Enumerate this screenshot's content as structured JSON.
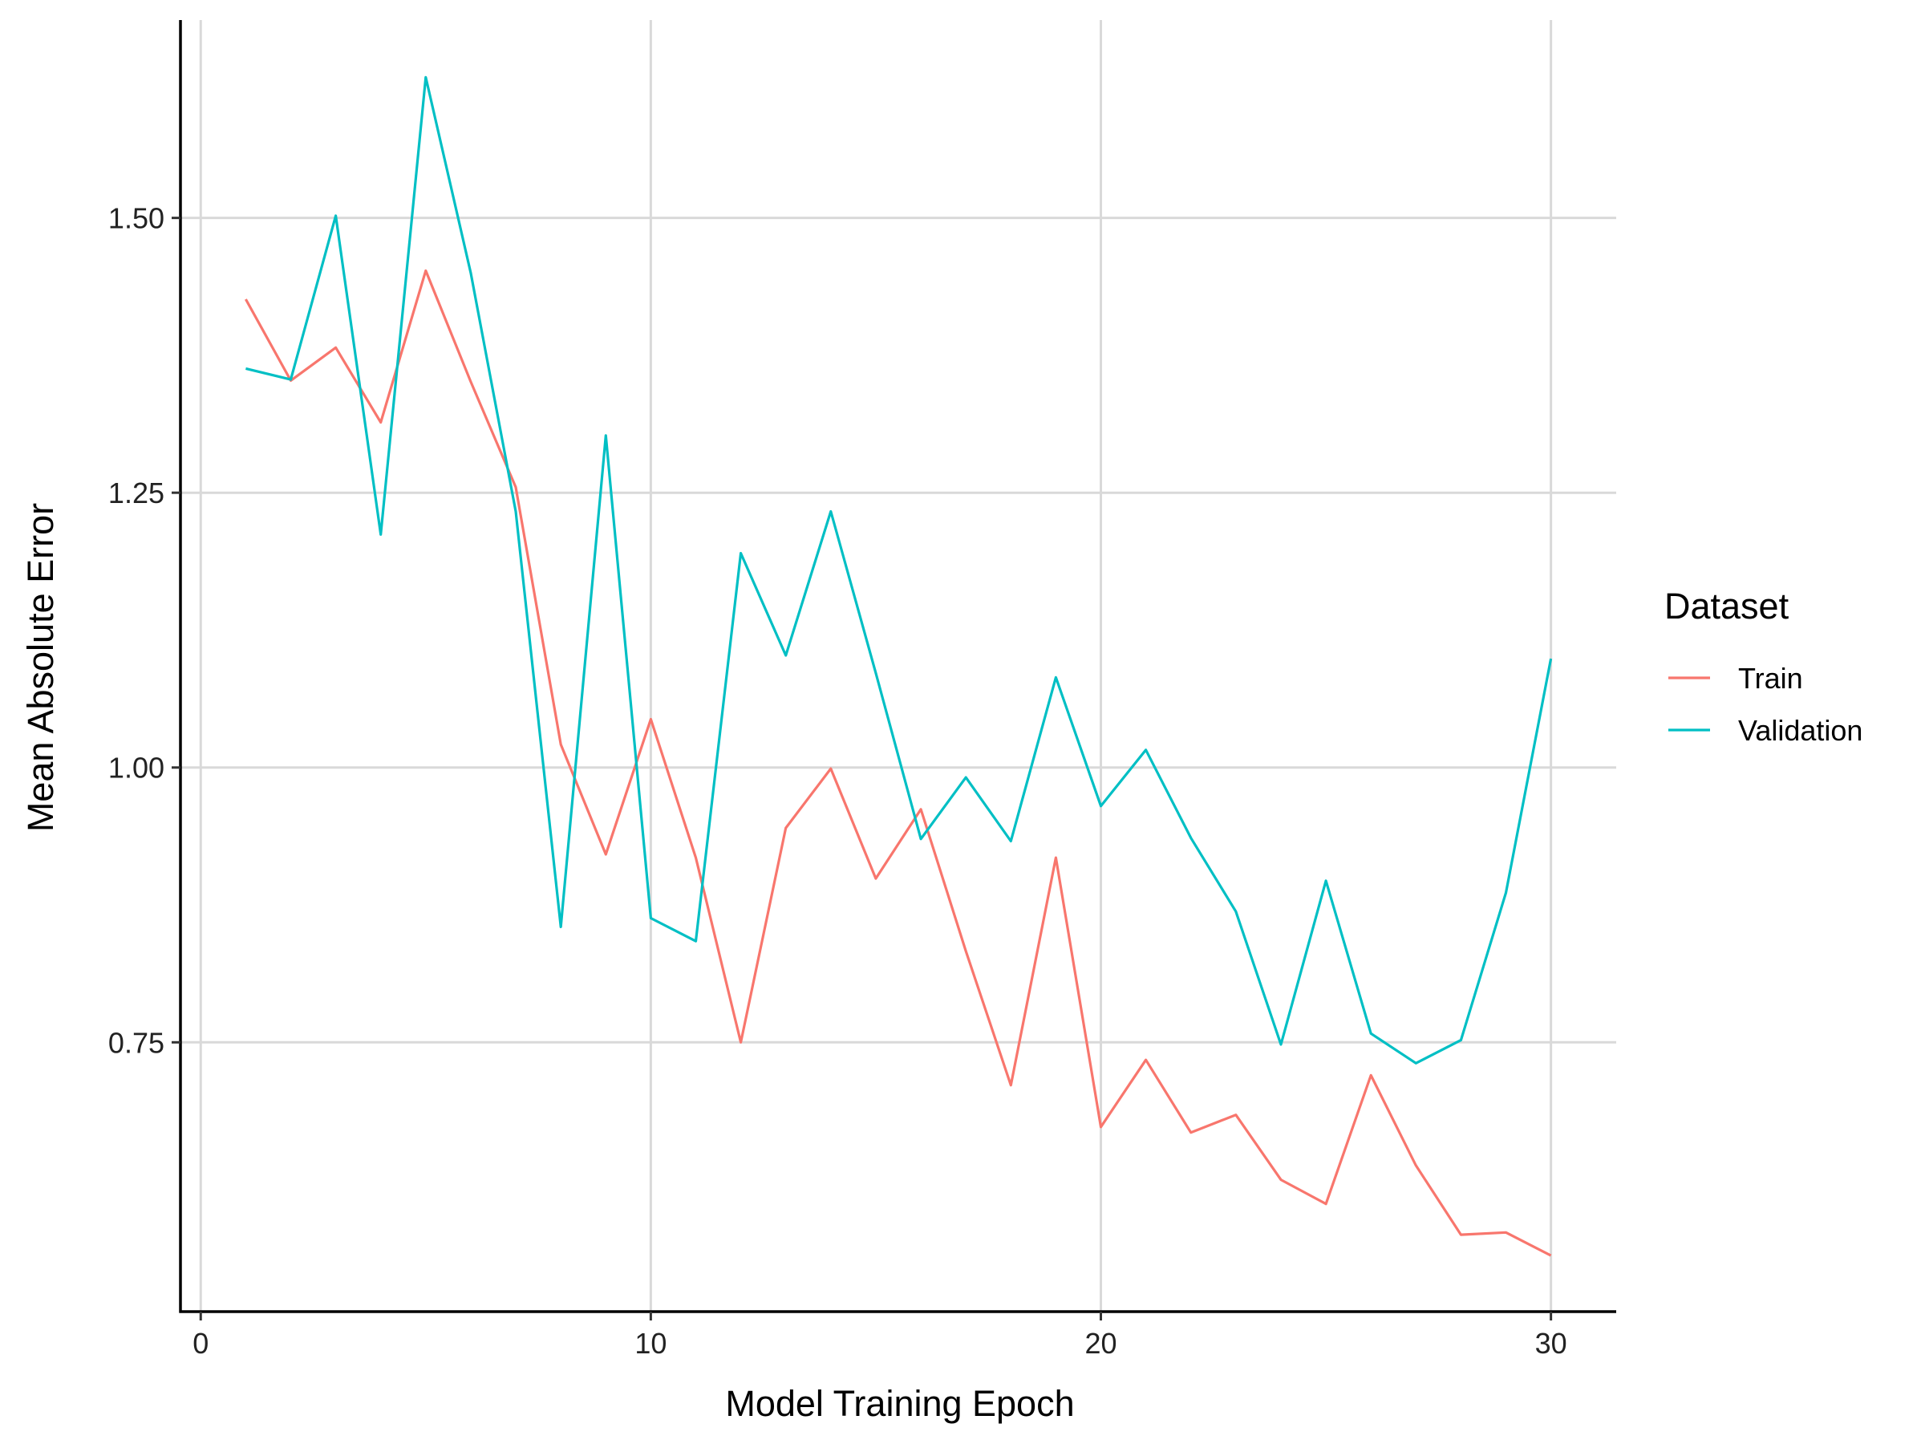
{
  "chart_data": {
    "type": "line",
    "xlabel": "Model Training Epoch",
    "ylabel": "Mean Absolute Error",
    "xlim": [
      -0.45,
      31.45
    ],
    "ylim": [
      0.505,
      1.68
    ],
    "xticks": [
      0,
      10,
      20,
      30
    ],
    "xtick_labels": [
      "0",
      "10",
      "20",
      "30"
    ],
    "yticks": [
      0.75,
      1.0,
      1.25,
      1.5
    ],
    "ytick_labels": [
      "0.75",
      "1.00",
      "1.25",
      "1.50"
    ],
    "grid": true,
    "legend": {
      "title": "Dataset",
      "position": "right"
    },
    "x": [
      1,
      2,
      3,
      4,
      5,
      6,
      7,
      8,
      9,
      10,
      11,
      12,
      13,
      14,
      15,
      16,
      17,
      18,
      19,
      20,
      21,
      22,
      23,
      24,
      25,
      26,
      27,
      28,
      29,
      30
    ],
    "series": [
      {
        "name": "Train",
        "color": "#F8766D",
        "values": [
          1.426,
          1.352,
          1.382,
          1.314,
          1.452,
          1.351,
          1.255,
          1.021,
          0.921,
          1.044,
          0.918,
          0.75,
          0.945,
          0.999,
          0.899,
          0.962,
          0.833,
          0.711,
          0.918,
          0.673,
          0.734,
          0.668,
          0.684,
          0.625,
          0.603,
          0.72,
          0.638,
          0.575,
          0.577,
          0.556
        ]
      },
      {
        "name": "Validation",
        "color": "#00BFC4",
        "values": [
          1.363,
          1.353,
          1.502,
          1.212,
          1.628,
          1.45,
          1.233,
          0.855,
          1.302,
          0.863,
          0.842,
          1.195,
          1.102,
          1.233,
          1.086,
          0.935,
          0.991,
          0.933,
          1.082,
          0.965,
          1.016,
          0.936,
          0.869,
          0.748,
          0.897,
          0.758,
          0.731,
          0.752,
          0.886,
          1.099
        ]
      }
    ]
  }
}
